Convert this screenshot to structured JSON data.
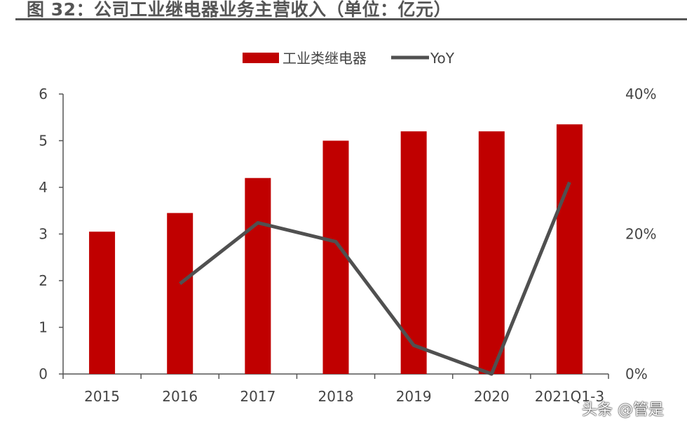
{
  "title": "图 32：公司工业继电器业务主营收入（单位：亿元）",
  "watermark": "头条 @管是",
  "chart_data": {
    "type": "bar",
    "categories": [
      "2015",
      "2016",
      "2017",
      "2018",
      "2019",
      "2020",
      "2021Q1-3"
    ],
    "series": [
      {
        "name": "工业类继电器",
        "type": "bar",
        "axis": "left",
        "color": "#C00000",
        "values": [
          3.05,
          3.45,
          4.2,
          5.0,
          5.2,
          5.2,
          5.35
        ]
      },
      {
        "name": "YoY",
        "type": "line",
        "axis": "right",
        "color": "#505050",
        "values": [
          null,
          12.9,
          21.6,
          18.9,
          4.1,
          0.0,
          27.4
        ]
      }
    ],
    "ylim": [
      0,
      6
    ],
    "yticks": [
      "0",
      "1",
      "2",
      "3",
      "4",
      "5",
      "6"
    ],
    "y2lim": [
      0,
      40
    ],
    "y2ticks": [
      "0%",
      "20%",
      "40%"
    ],
    "legend": "top",
    "grid": false
  }
}
